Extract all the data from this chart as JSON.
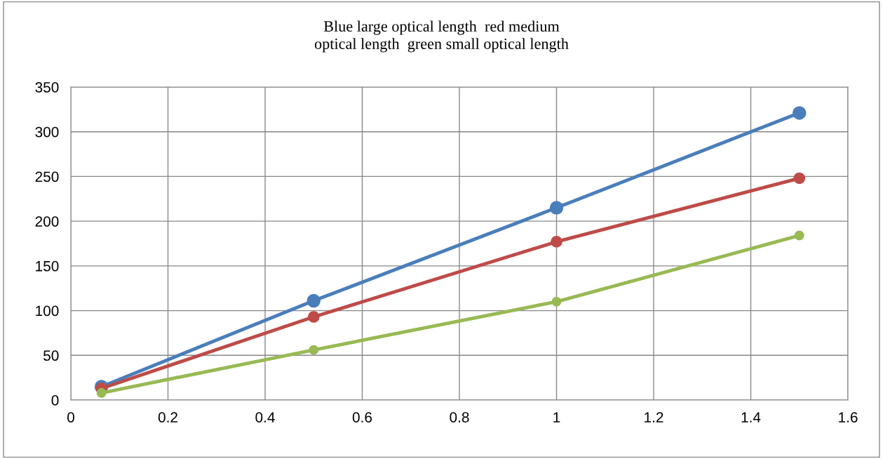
{
  "chart_data": {
    "type": "line",
    "title": "Blue large optical length  red medium\noptical length  green small optical length",
    "x": [
      0.063,
      0.5,
      1,
      1.5
    ],
    "series": [
      {
        "color": "#4a7ebb",
        "values": [
          15,
          111,
          215,
          321
        ]
      },
      {
        "color": "#be4b48",
        "values": [
          13,
          93,
          177,
          248
        ]
      },
      {
        "color": "#98b954",
        "values": [
          8,
          56,
          110,
          184
        ]
      }
    ],
    "xlim": [
      0,
      1.6
    ],
    "xticks": [
      0,
      0.2,
      0.4,
      0.6,
      0.8,
      1,
      1.2,
      1.4,
      1.6
    ],
    "ylim": [
      0,
      350
    ],
    "yticks": [
      0,
      50,
      100,
      150,
      200,
      250,
      300,
      350
    ],
    "grid": true,
    "marker": "circle",
    "line_style": "solid",
    "legend": false
  }
}
